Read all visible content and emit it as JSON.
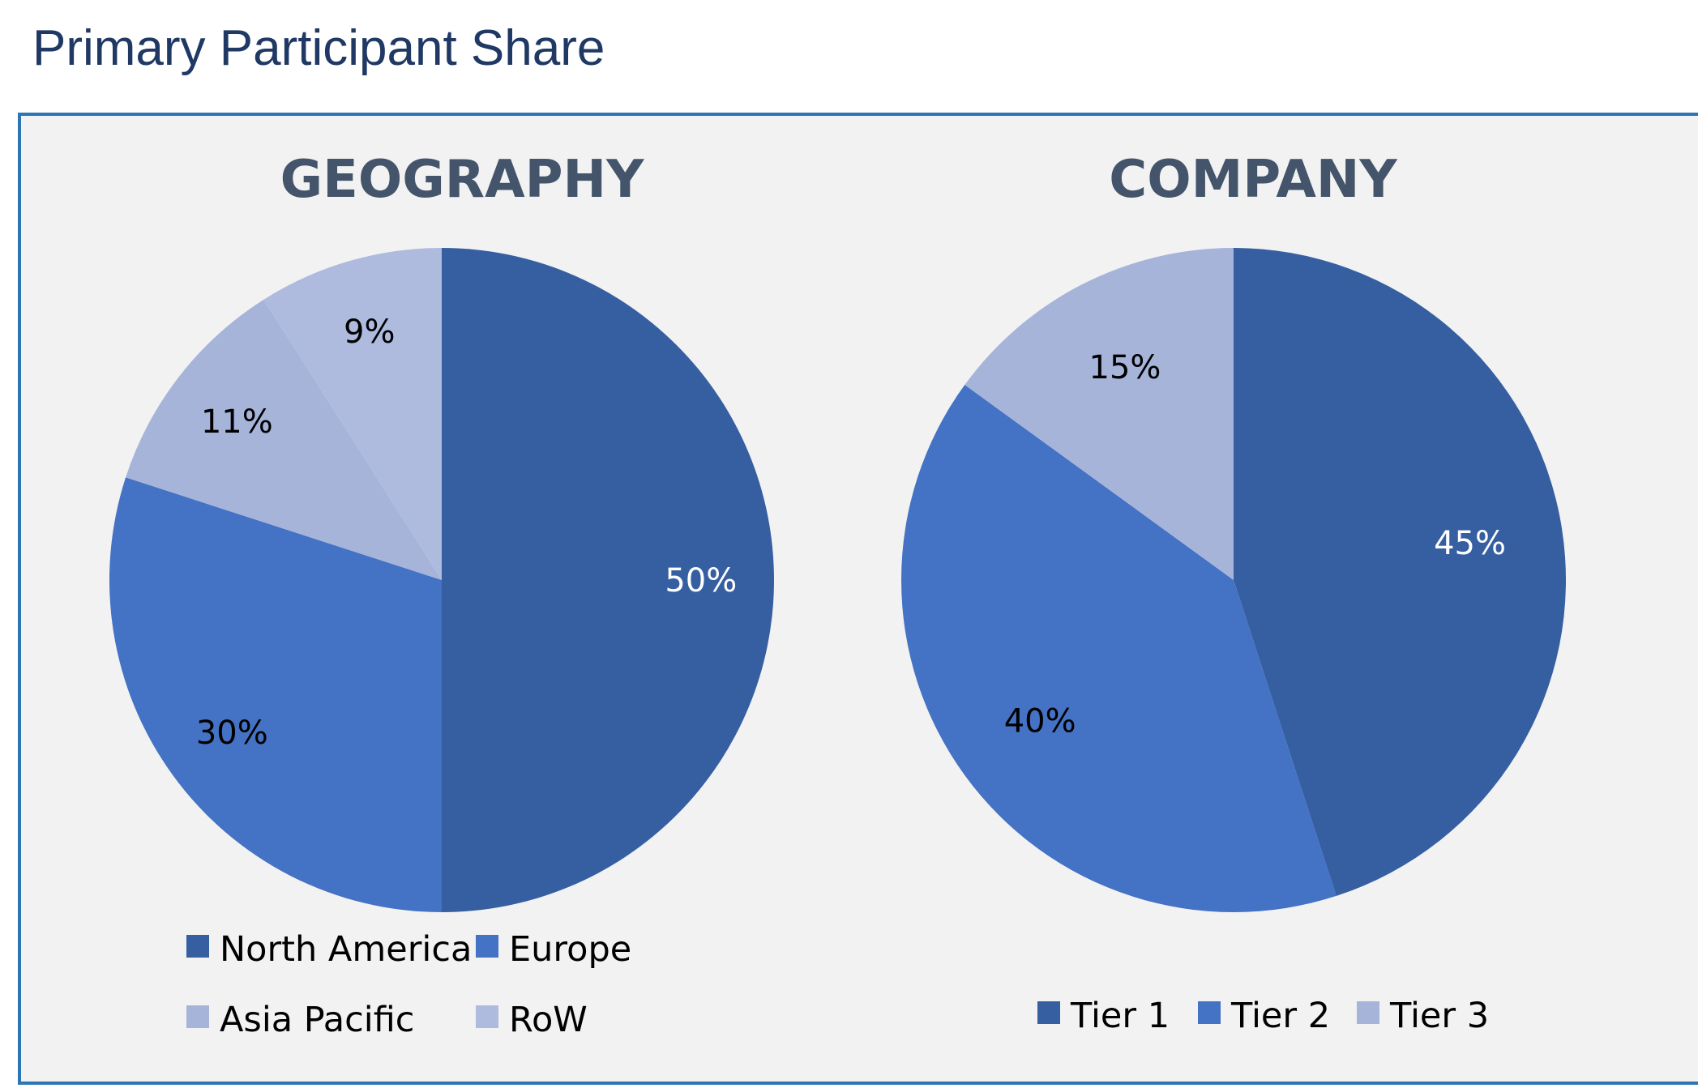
{
  "page": {
    "title": "Primary Participant Share"
  },
  "colors": {
    "title": "#1f3864",
    "panel_border": "#2e75b6",
    "panel_bg": "#f2f2f2",
    "chart_title": "#44546a",
    "dark_blue": "#365fa1",
    "mid_blue": "#4472c4",
    "light_blue": "#a6b4da",
    "lighter_blue": "#aebbdf"
  },
  "chart_data": [
    {
      "type": "pie",
      "title": "GEOGRAPHY",
      "categories": [
        "North America",
        "Europe",
        "Asia Pacific",
        "RoW"
      ],
      "values": [
        50,
        30,
        11,
        9
      ],
      "labels": [
        "50%",
        "30%",
        "11%",
        "9%"
      ],
      "colors": [
        "#365fa1",
        "#4472c4",
        "#a6b4da",
        "#aebbdf"
      ],
      "start": "12 o'clock",
      "direction": "clockwise",
      "legend": "bottom"
    },
    {
      "type": "pie",
      "title": "COMPANY",
      "categories": [
        "Tier 1",
        "Tier 2",
        "Tier 3"
      ],
      "values": [
        45,
        40,
        15
      ],
      "labels": [
        "45%",
        "40%",
        "15%"
      ],
      "colors": [
        "#365fa1",
        "#4472c4",
        "#a6b4da"
      ],
      "start": "12 o'clock",
      "direction": "clockwise",
      "legend": "bottom"
    }
  ]
}
